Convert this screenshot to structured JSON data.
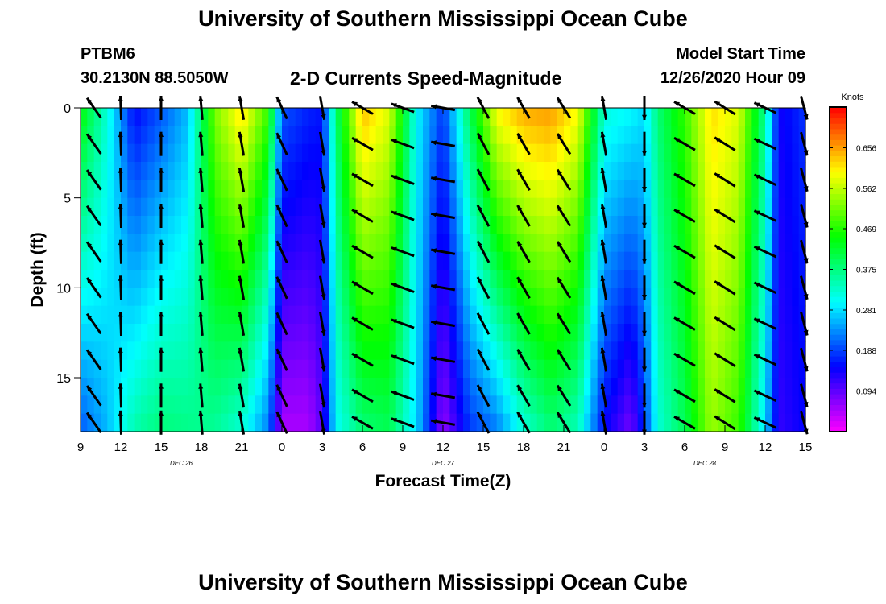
{
  "header": {
    "title": "University of Southern Mississippi Ocean Cube",
    "station": "PTBM6",
    "coords": "30.2130N 88.5050W",
    "subtitle": "2-D Currents Speed-Magnitude",
    "model_start_label": "Model Start Time",
    "model_start_value": "12/26/2020 Hour 09"
  },
  "footer": {
    "title": "University of Southern Mississippi Ocean Cube"
  },
  "chart_data": {
    "type": "heatmap",
    "title": "2-D Currents Speed-Magnitude",
    "xlabel": "Forecast Time(Z)",
    "ylabel": "Depth (ft)",
    "x_unit": "forecast hours from 12/26/2020 09Z",
    "xlim": [
      0,
      54
    ],
    "ylim": [
      0,
      18
    ],
    "y_inverted": true,
    "x_ticks": [
      {
        "x": 0,
        "label": "9"
      },
      {
        "x": 3,
        "label": "12"
      },
      {
        "x": 6,
        "label": "15"
      },
      {
        "x": 9,
        "label": "18"
      },
      {
        "x": 12,
        "label": "21"
      },
      {
        "x": 15,
        "label": "0"
      },
      {
        "x": 18,
        "label": "3"
      },
      {
        "x": 21,
        "label": "6"
      },
      {
        "x": 24,
        "label": "9"
      },
      {
        "x": 27,
        "label": "12"
      },
      {
        "x": 30,
        "label": "15"
      },
      {
        "x": 33,
        "label": "18"
      },
      {
        "x": 36,
        "label": "21"
      },
      {
        "x": 39,
        "label": "0"
      },
      {
        "x": 42,
        "label": "3"
      },
      {
        "x": 45,
        "label": "6"
      },
      {
        "x": 48,
        "label": "9"
      },
      {
        "x": 51,
        "label": "12"
      },
      {
        "x": 54,
        "label": "15"
      }
    ],
    "y_ticks": [
      {
        "y": 0,
        "label": "0"
      },
      {
        "y": 5,
        "label": "5"
      },
      {
        "y": 10,
        "label": "10"
      },
      {
        "y": 15,
        "label": "15"
      }
    ],
    "date_labels": [
      {
        "x": 7.5,
        "label": "DEC  26"
      },
      {
        "x": 27,
        "label": "DEC  27"
      },
      {
        "x": 46.5,
        "label": "DEC  28"
      }
    ],
    "colorbar": {
      "unit": "Knots",
      "min": 0.0,
      "max": 0.75,
      "ticks": [
        0.094,
        0.188,
        0.281,
        0.375,
        0.469,
        0.562,
        0.656
      ],
      "tick_labels": [
        "0.094",
        "0.188",
        "0.281",
        "0.375",
        "0.469",
        "0.562",
        "0.656"
      ]
    },
    "speed_profiles_knots": [
      {
        "x": 0,
        "surface": 0.45,
        "bottom": 0.2
      },
      {
        "x": 2,
        "surface": 0.32,
        "bottom": 0.26
      },
      {
        "x": 4,
        "surface": 0.15,
        "bottom": 0.35
      },
      {
        "x": 6,
        "surface": 0.2,
        "bottom": 0.38
      },
      {
        "x": 8,
        "surface": 0.26,
        "bottom": 0.37
      },
      {
        "x": 10,
        "surface": 0.52,
        "bottom": 0.36
      },
      {
        "x": 12,
        "surface": 0.62,
        "bottom": 0.32
      },
      {
        "x": 14,
        "surface": 0.48,
        "bottom": 0.22
      },
      {
        "x": 15,
        "surface": 0.2,
        "bottom": 0.05
      },
      {
        "x": 17,
        "surface": 0.17,
        "bottom": 0.05
      },
      {
        "x": 18,
        "surface": 0.16,
        "bottom": 0.1
      },
      {
        "x": 19,
        "surface": 0.38,
        "bottom": 0.3
      },
      {
        "x": 21,
        "surface": 0.64,
        "bottom": 0.38
      },
      {
        "x": 23,
        "surface": 0.58,
        "bottom": 0.4
      },
      {
        "x": 25,
        "surface": 0.3,
        "bottom": 0.28
      },
      {
        "x": 27,
        "surface": 0.18,
        "bottom": 0.06
      },
      {
        "x": 29,
        "surface": 0.4,
        "bottom": 0.18
      },
      {
        "x": 31,
        "surface": 0.6,
        "bottom": 0.22
      },
      {
        "x": 33,
        "surface": 0.65,
        "bottom": 0.32
      },
      {
        "x": 35,
        "surface": 0.66,
        "bottom": 0.38
      },
      {
        "x": 37,
        "surface": 0.6,
        "bottom": 0.34
      },
      {
        "x": 39,
        "surface": 0.32,
        "bottom": 0.15
      },
      {
        "x": 41,
        "surface": 0.3,
        "bottom": 0.08
      },
      {
        "x": 42,
        "surface": 0.28,
        "bottom": 0.18
      },
      {
        "x": 43,
        "surface": 0.38,
        "bottom": 0.32
      },
      {
        "x": 45,
        "surface": 0.48,
        "bottom": 0.4
      },
      {
        "x": 47,
        "surface": 0.62,
        "bottom": 0.54
      },
      {
        "x": 49,
        "surface": 0.58,
        "bottom": 0.48
      },
      {
        "x": 51,
        "surface": 0.36,
        "bottom": 0.28
      },
      {
        "x": 52,
        "surface": 0.14,
        "bottom": 0.12
      },
      {
        "x": 54,
        "surface": 0.18,
        "bottom": 0.15
      }
    ],
    "vector_columns": [
      {
        "x": 1,
        "angle_deg": 125
      },
      {
        "x": 3,
        "angle_deg": 92
      },
      {
        "x": 6,
        "angle_deg": 90
      },
      {
        "x": 9,
        "angle_deg": 95
      },
      {
        "x": 12,
        "angle_deg": 100
      },
      {
        "x": 15,
        "angle_deg": 115
      },
      {
        "x": 18,
        "angle_deg": 280
      },
      {
        "x": 21,
        "angle_deg": 150
      },
      {
        "x": 24,
        "angle_deg": 160
      },
      {
        "x": 27,
        "angle_deg": 170
      },
      {
        "x": 30,
        "angle_deg": 118
      },
      {
        "x": 33,
        "angle_deg": 120
      },
      {
        "x": 36,
        "angle_deg": 122
      },
      {
        "x": 39,
        "angle_deg": 100
      },
      {
        "x": 42,
        "angle_deg": 270
      },
      {
        "x": 45,
        "angle_deg": 150
      },
      {
        "x": 48,
        "angle_deg": 148
      },
      {
        "x": 51,
        "angle_deg": 155
      },
      {
        "x": 54,
        "angle_deg": 285
      }
    ],
    "vector_depths": [
      0,
      2,
      4,
      6,
      8,
      10,
      12,
      14,
      16,
      17.5
    ]
  }
}
